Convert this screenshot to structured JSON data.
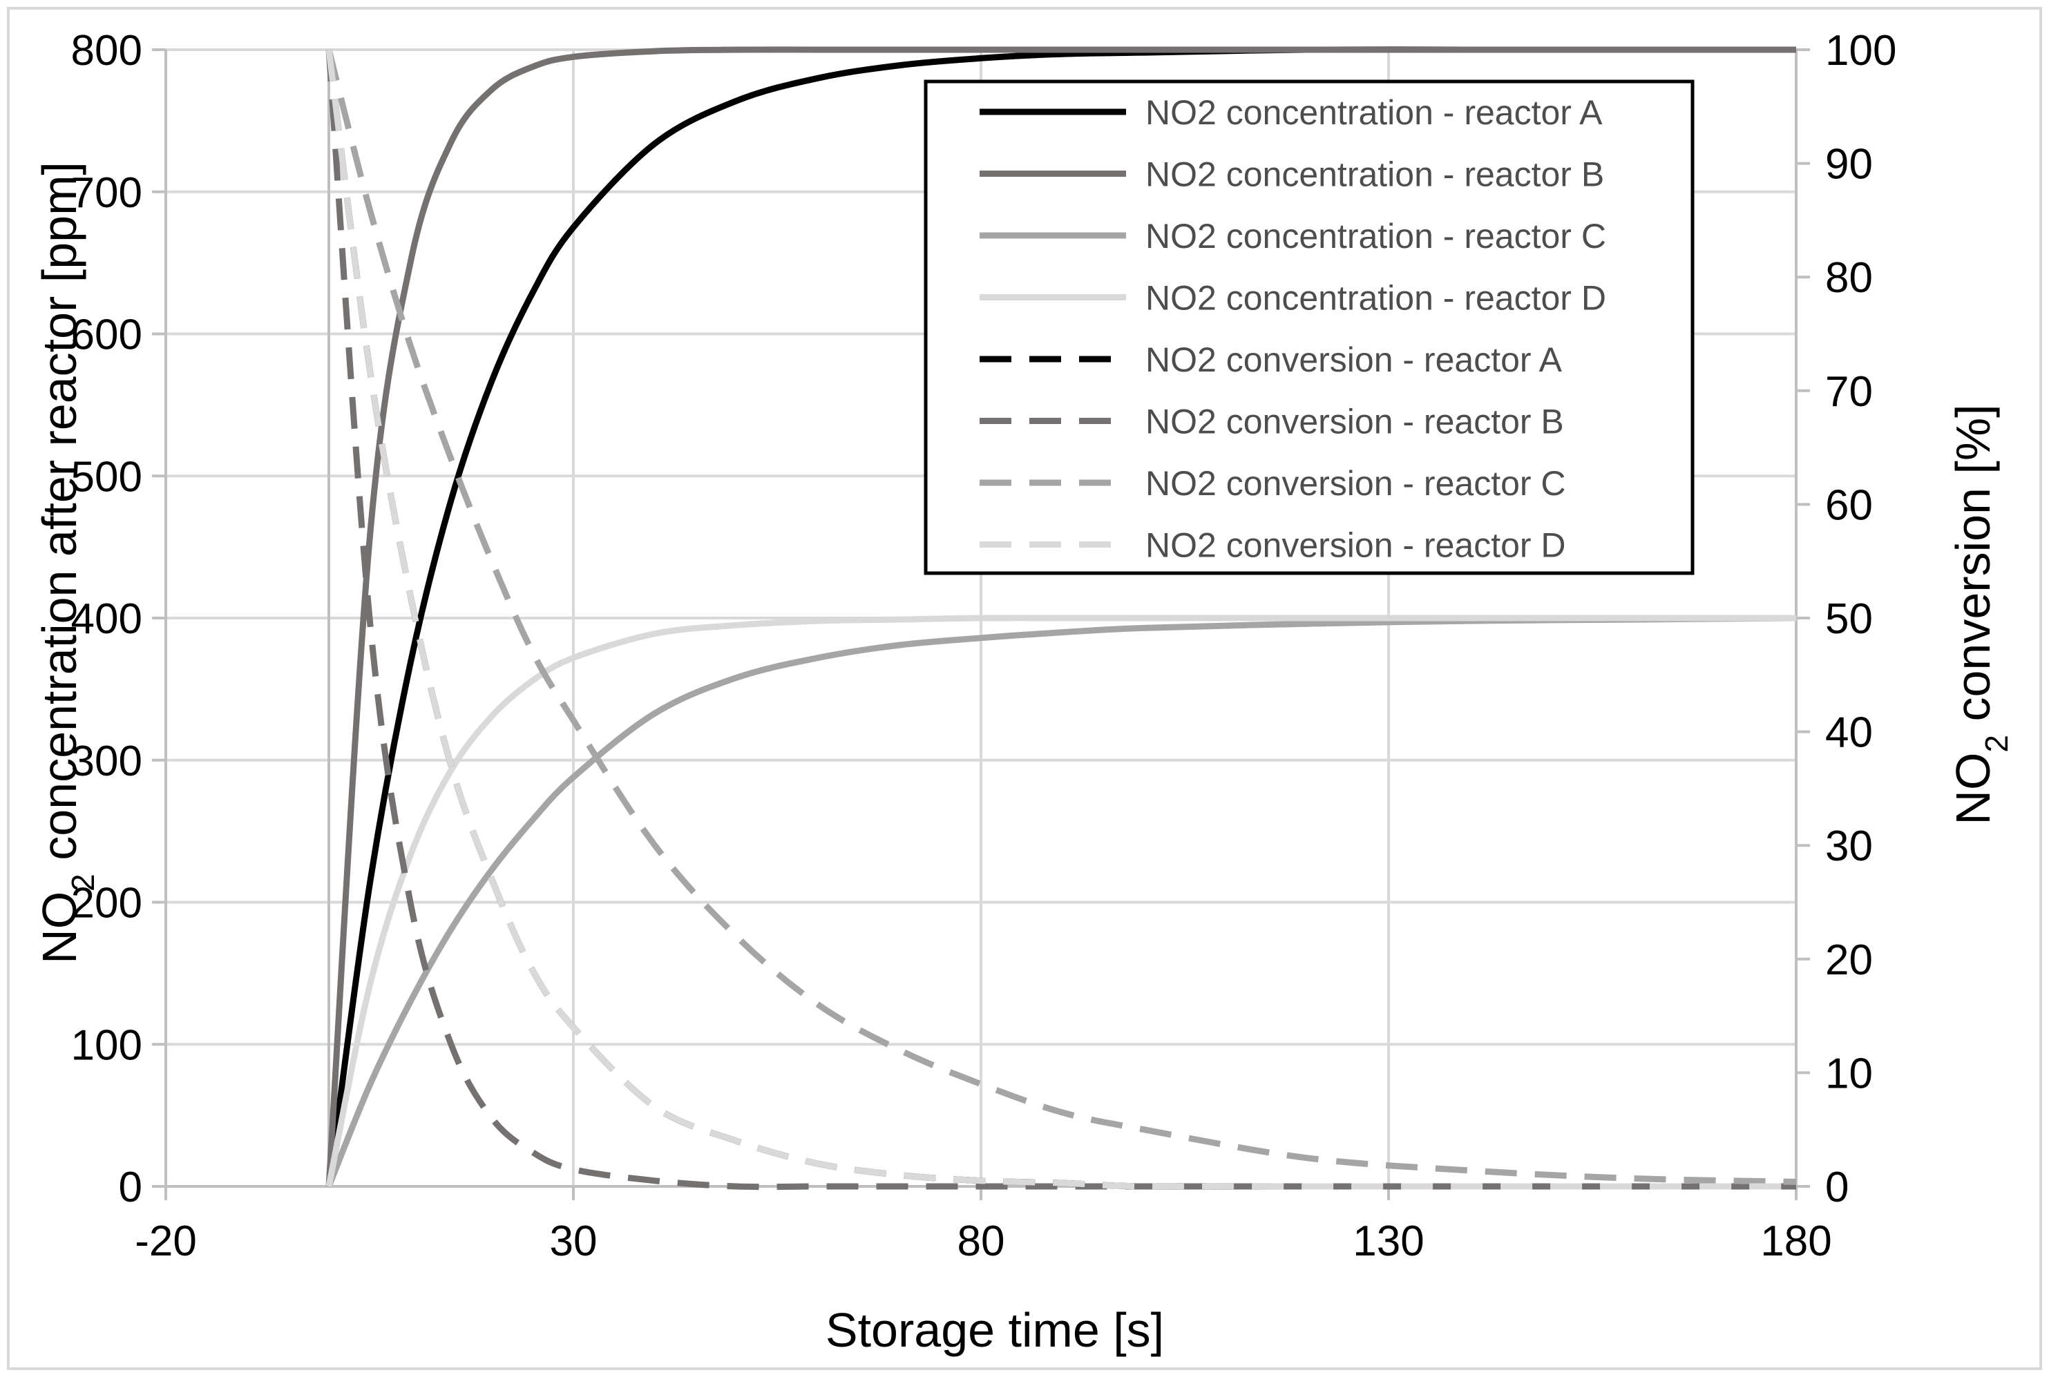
{
  "chart_data": {
    "type": "line",
    "xlabel": "Storage time [s]",
    "ylabel": {
      "prefix": "NO",
      "sub": "2",
      "suffix": " concentration after reactor [ppm]"
    },
    "y2label": {
      "prefix": "NO",
      "sub": "2",
      "suffix": " conversion [%]"
    },
    "xlim": [
      -20,
      180
    ],
    "ylim": [
      0,
      800
    ],
    "y2lim": [
      0,
      100
    ],
    "xticks": [
      -20,
      30,
      80,
      130,
      180
    ],
    "yticks": [
      0,
      100,
      200,
      300,
      400,
      500,
      600,
      700,
      800
    ],
    "y2ticks": [
      0,
      10,
      20,
      30,
      40,
      50,
      60,
      70,
      80,
      90,
      100
    ],
    "grid": true,
    "legend_position": "top-right",
    "x": [
      0,
      5,
      10,
      15,
      20,
      25,
      30,
      40,
      50,
      60,
      70,
      80,
      90,
      100,
      120,
      140,
      160,
      180
    ],
    "series": [
      {
        "name": "NO2 concentration - reactor A",
        "axis": "left",
        "color": "#000000",
        "dash": "solid",
        "values": [
          0,
          212,
          368,
          483,
          567,
          629,
          675,
          734,
          764,
          780,
          789,
          794,
          797,
          798,
          800,
          800,
          800,
          800
        ]
      },
      {
        "name": "NO2 concentration - reactor B",
        "axis": "left",
        "color": "#767171",
        "dash": "solid",
        "values": [
          0,
          455,
          650,
          735,
          772,
          788,
          795,
          799,
          800,
          800,
          800,
          800,
          800,
          800,
          800,
          800,
          800,
          800
        ]
      },
      {
        "name": "NO2 concentration - reactor C",
        "axis": "left",
        "color": "#a5a5a5",
        "dash": "solid",
        "values": [
          0,
          71,
          130,
          181,
          223,
          258,
          288,
          333,
          358,
          372,
          381,
          386,
          390,
          393,
          396,
          398,
          399,
          400
        ]
      },
      {
        "name": "NO2 concentration - reactor D",
        "axis": "left",
        "color": "#d9d9d9",
        "dash": "solid",
        "values": [
          0,
          141,
          233,
          293,
          331,
          356,
          372,
          389,
          395,
          398,
          399,
          400,
          400,
          400,
          400,
          400,
          400,
          400
        ]
      },
      {
        "name": "NO2 conversion - reactor A",
        "axis": "right",
        "color": "#000000",
        "dash": "dashed",
        "values": [
          100,
          72,
          52,
          37,
          27,
          19,
          14,
          7,
          4,
          2,
          1,
          0.5,
          0.3,
          0,
          0,
          0,
          0,
          0
        ]
      },
      {
        "name": "NO2 conversion - reactor B",
        "axis": "right",
        "color": "#767171",
        "dash": "dashed",
        "values": [
          100,
          50,
          25,
          12.5,
          6,
          3,
          1.5,
          0.5,
          0,
          0,
          0,
          0,
          0,
          0,
          0,
          0,
          0,
          0
        ]
      },
      {
        "name": "NO2 conversion - reactor C",
        "axis": "right",
        "color": "#a5a5a5",
        "dash": "dashed",
        "values": [
          100,
          86,
          74,
          64,
          55,
          47,
          41,
          30,
          22,
          16,
          12,
          9,
          6.5,
          5,
          2.5,
          1.4,
          0.7,
          0.4
        ]
      },
      {
        "name": "NO2 conversion - reactor D",
        "axis": "right",
        "color": "#d9d9d9",
        "dash": "dashed",
        "values": [
          100,
          72,
          52,
          37,
          27,
          19,
          14,
          7,
          4,
          2,
          1,
          0.5,
          0.3,
          0,
          0,
          0,
          0,
          0
        ]
      }
    ]
  }
}
